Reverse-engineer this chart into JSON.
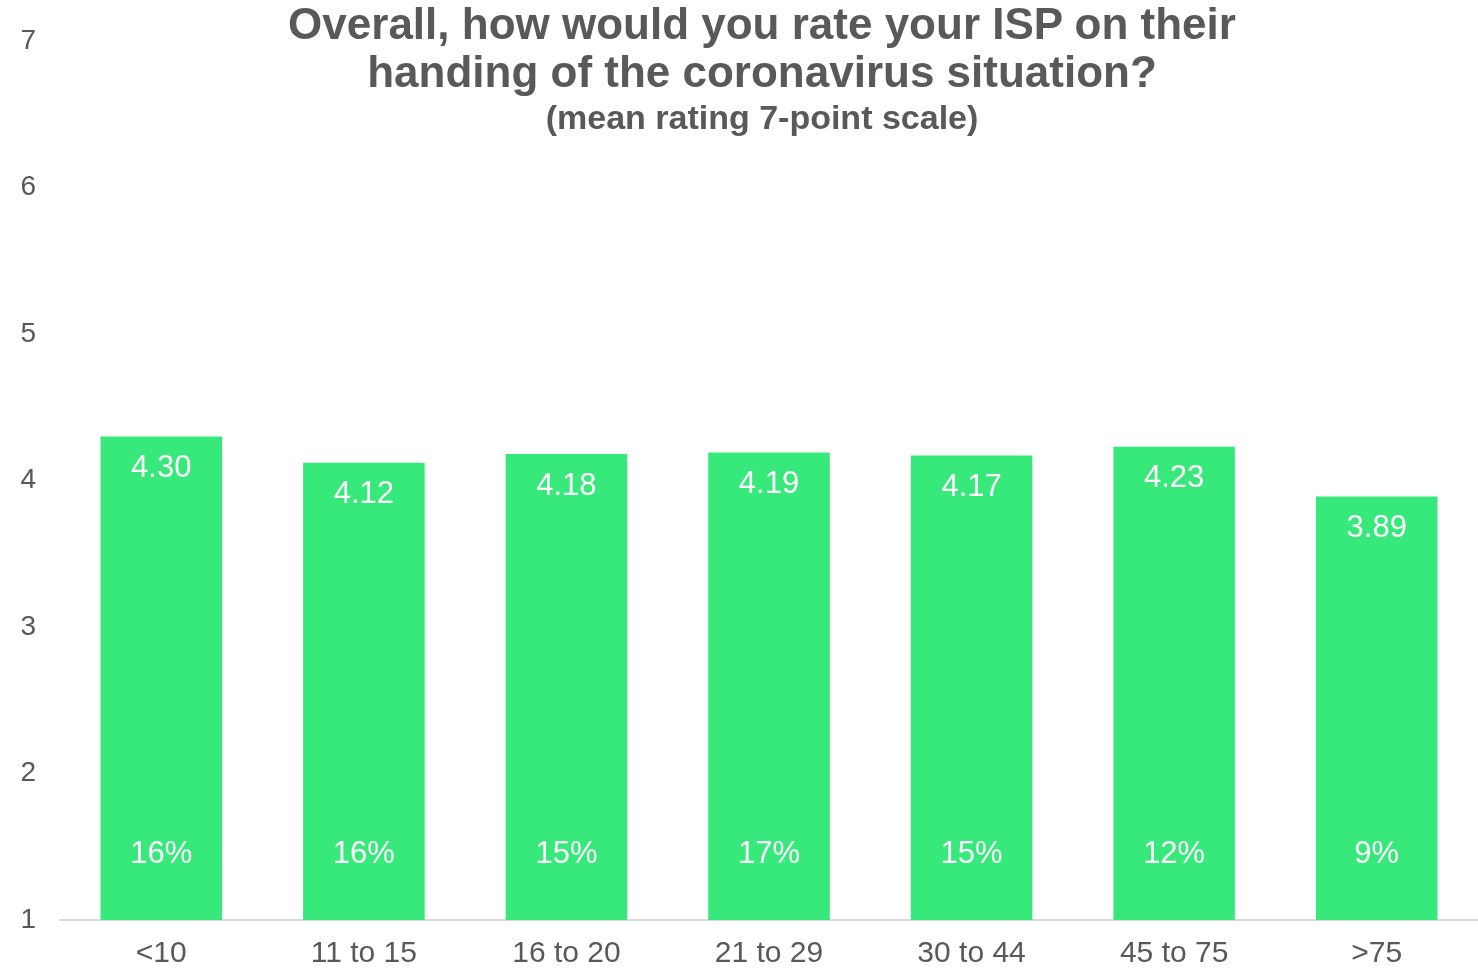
{
  "chart_data": {
    "type": "bar",
    "title": "Overall, how would you rate your ISP on their handing of the coronavirus situation?",
    "subtitle": "(mean rating 7-point scale)",
    "categories": [
      "<10",
      "11 to 15",
      "16 to 20",
      "21 to 29",
      "30 to 44",
      "45 to 75",
      ">75"
    ],
    "values": [
      4.3,
      4.12,
      4.18,
      4.19,
      4.17,
      4.23,
      3.89
    ],
    "value_labels": [
      "4.30",
      "4.12",
      "4.18",
      "4.19",
      "4.17",
      "4.23",
      "3.89"
    ],
    "color": "#37e97a",
    "ylim": [
      1,
      7
    ],
    "yticks": [
      1,
      2,
      3,
      4,
      5,
      6,
      7
    ],
    "annotations": [
      "16%",
      "16%",
      "15%",
      "17%",
      "15%",
      "12%",
      "9%"
    ]
  }
}
